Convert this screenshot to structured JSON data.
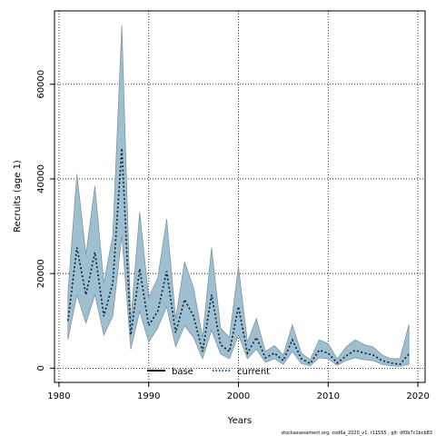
{
  "chart_data": {
    "type": "area",
    "xlabel": "Years",
    "ylabel": "Recruits (age 1)",
    "xlim": [
      1979.5,
      2020.8
    ],
    "ylim": [
      -3000,
      75500
    ],
    "x_ticks": [
      1980,
      1990,
      2000,
      2010,
      2020
    ],
    "y_ticks": [
      0,
      20000,
      40000,
      60000
    ],
    "grid": "dotted",
    "legend_placement": "bottom-center",
    "legend": [
      {
        "name": "base",
        "style": "solid"
      },
      {
        "name": "current",
        "style": "dotted"
      }
    ],
    "colors": {
      "band_fill": "#9dbfd0",
      "band_stroke": "#7a8f99",
      "line": "#000000",
      "current_dots": "#1f5fa8"
    },
    "x": [
      1981,
      1982,
      1983,
      1984,
      1985,
      1986,
      1987,
      1988,
      1989,
      1990,
      1991,
      1992,
      1993,
      1994,
      1995,
      1996,
      1997,
      1998,
      1999,
      2000,
      2001,
      2002,
      2003,
      2004,
      2005,
      2006,
      2007,
      2008,
      2009,
      2010,
      2011,
      2012,
      2013,
      2014,
      2015,
      2016,
      2017,
      2018,
      2019
    ],
    "upper": [
      16000,
      41000,
      24000,
      38500,
      18000,
      28000,
      72500,
      10000,
      33000,
      15000,
      19000,
      31500,
      10500,
      22500,
      17000,
      6500,
      25500,
      8500,
      6500,
      21500,
      5500,
      10500,
      3500,
      4800,
      2800,
      9200,
      3200,
      1800,
      6000,
      5200,
      2000,
      4500,
      6000,
      5000,
      4500,
      2800,
      2000,
      2000,
      9200
    ],
    "lower": [
      6000,
      15500,
      9500,
      15500,
      7000,
      11000,
      28000,
      4000,
      12000,
      5500,
      8500,
      13000,
      4500,
      9000,
      6500,
      2000,
      8000,
      3000,
      2000,
      7000,
      2000,
      4000,
      1200,
      2000,
      800,
      3500,
      1000,
      500,
      2200,
      2000,
      600,
      1600,
      2200,
      1800,
      1600,
      800,
      500,
      400,
      800
    ],
    "series": [
      {
        "name": "base",
        "values": [
          10000,
          25500,
          15500,
          24500,
          11000,
          18000,
          46500,
          7000,
          21000,
          9000,
          12000,
          20500,
          7500,
          14500,
          11000,
          3500,
          15500,
          5000,
          3500,
          13000,
          3200,
          6500,
          2200,
          3200,
          1600,
          6000,
          2000,
          1000,
          3800,
          3200,
          1100,
          2600,
          3800,
          3200,
          2800,
          1600,
          1100,
          800,
          3000
        ]
      },
      {
        "name": "current",
        "values": [
          10000,
          25500,
          15500,
          24500,
          11000,
          18000,
          46500,
          7000,
          21000,
          9000,
          12000,
          20500,
          7500,
          14500,
          11000,
          3500,
          15500,
          5000,
          3500,
          13000,
          3200,
          6500,
          2200,
          3200,
          1600,
          6000,
          2000,
          1000,
          3800,
          3200,
          1100,
          2600,
          3800,
          3200,
          2800,
          1600,
          1100,
          800,
          3000
        ]
      }
    ]
  },
  "footer": "stockassessment.org, cod6a_2020_v1, r11555 , git: df0b7c1bcb83"
}
